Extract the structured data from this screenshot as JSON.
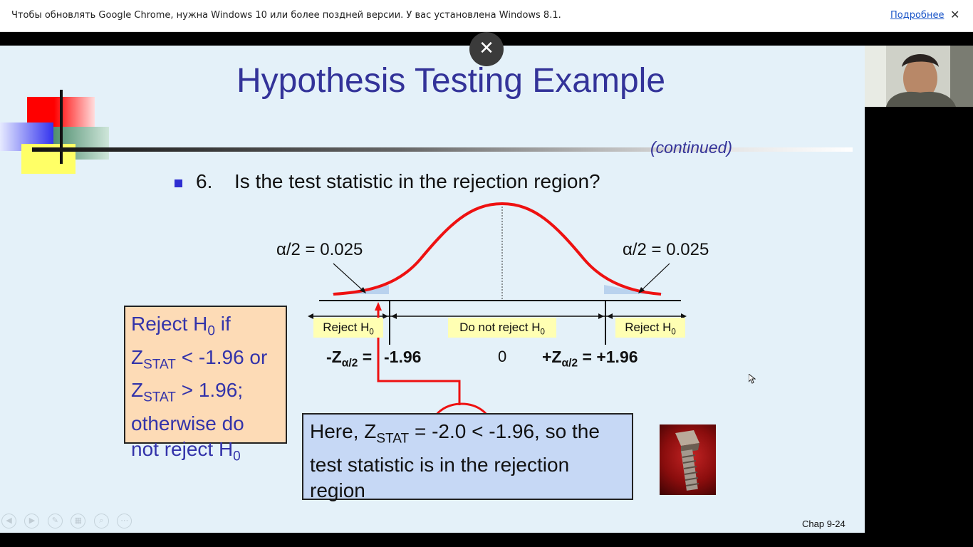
{
  "infobar": {
    "message": "Чтобы обновлять Google Chrome, нужна Windows 10 или более поздней версии. У вас установлена Windows 8.1.",
    "more_link": "Подробнее",
    "close_glyph": "✕"
  },
  "overlay": {
    "close_glyph": "✕"
  },
  "slide": {
    "title": "Hypothesis Testing Example",
    "continued": "(continued)",
    "bullet_number": "6.",
    "bullet_text": "Is the test statistic in the rejection region?",
    "alpha_left": "α/2 = 0.025",
    "alpha_right": "α/2 = 0.025",
    "region_labels": {
      "reject_left": "Reject H",
      "do_not_reject": "Do not reject H",
      "reject_right": "Reject H",
      "subscript": "0"
    },
    "z_left_prefix": "-Z",
    "z_left_sub": "α/2",
    "z_left_suffix": " =",
    "z_left_value": "-1.96",
    "zero": "0",
    "z_right_prefix": "+Z",
    "z_right_sub": "α/2",
    "z_right_suffix": " = +1.96",
    "rule_box": {
      "line1_a": "Reject H",
      "line1_sub": "0",
      "line1_b": " if",
      "line2_a": "Z",
      "line2_sub": "STAT",
      "line2_b": " < -1.96 or",
      "line3_a": "Z",
      "line3_sub": "STAT",
      "line3_b": " > 1.96;",
      "line4": "otherwise do",
      "line5_a": "not reject H",
      "line5_sub": "0"
    },
    "here_box": {
      "a": "Here, Z",
      "sub": "STAT",
      "b": " = -2.0 < -1.96, so the",
      "line2": "test statistic is in the rejection",
      "line3": "region"
    },
    "chap": "Chap 9-24"
  },
  "toolbar": {
    "buttons": [
      "prev-icon",
      "next-icon",
      "pen-icon",
      "slides-icon",
      "zoom-icon",
      "more-icon"
    ]
  },
  "colors": {
    "title": "#333399",
    "slide_bg": "#e4f1f9",
    "curve": "#ee1111",
    "rule_box_bg": "#fddbb6",
    "here_box_bg": "#c6d8f5",
    "label_bg": "#ffffb3"
  }
}
